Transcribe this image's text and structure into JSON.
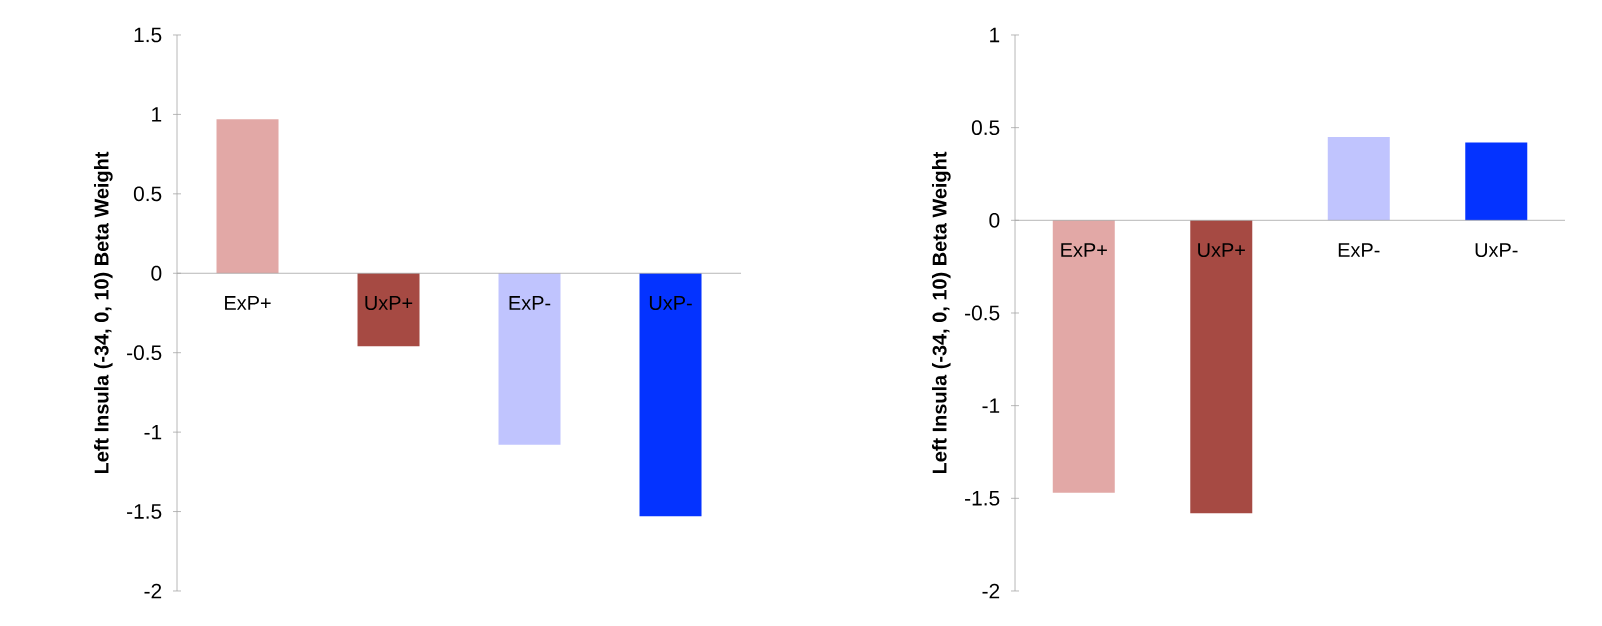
{
  "chart_data": [
    {
      "type": "bar",
      "ylabel": "Left Insula (-34, 0, 10) Beta Weight",
      "categories": [
        "ExP+",
        "UxP+",
        "ExP-",
        "UxP-"
      ],
      "values": [
        0.97,
        -0.46,
        -1.08,
        -1.53
      ],
      "colors": [
        "#e2a8a6",
        "#a64a43",
        "#c0c4fe",
        "#0433ff"
      ],
      "ylim": [
        -2,
        1.5
      ],
      "yticks": [
        -2,
        -1.5,
        -1,
        -0.5,
        0,
        0.5,
        1,
        1.5
      ]
    },
    {
      "type": "bar",
      "ylabel": "Left Insula (-34, 0, 10) Beta Weight",
      "categories": [
        "ExP+",
        "UxP+",
        "ExP-",
        "UxP-"
      ],
      "values": [
        -1.47,
        -1.58,
        0.45,
        0.42
      ],
      "colors": [
        "#e2a8a6",
        "#a64a43",
        "#c0c4fe",
        "#0433ff"
      ],
      "ylim": [
        -2,
        1
      ],
      "yticks": [
        -2,
        -1.5,
        -1,
        -0.5,
        0,
        0.5,
        1
      ]
    }
  ]
}
